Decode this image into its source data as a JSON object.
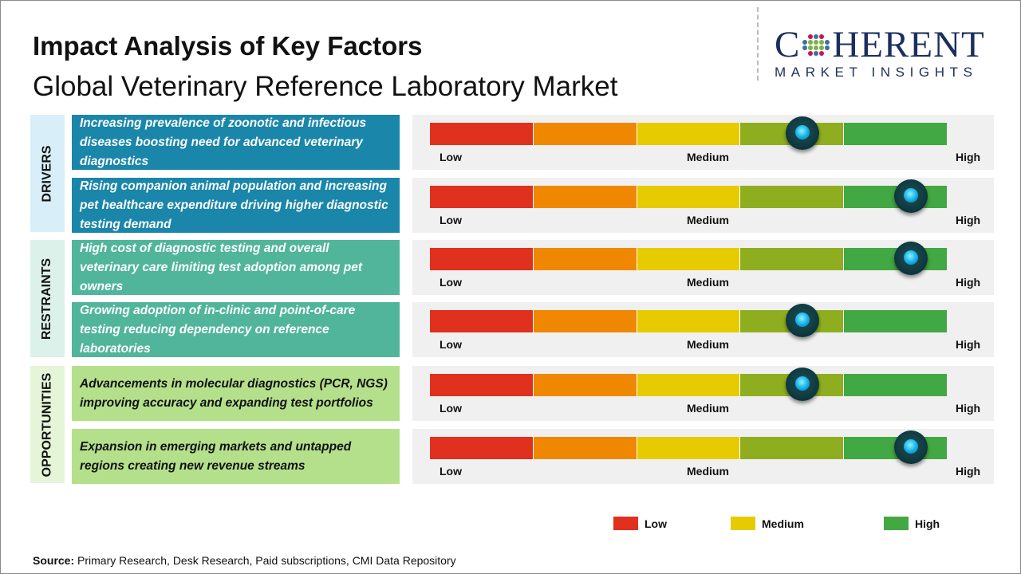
{
  "header": {
    "title": "Impact Analysis of Key Factors",
    "subtitle": "Global Veterinary Reference Laboratory Market"
  },
  "logo": {
    "top": "COHERENT",
    "bottom": "MARKET INSIGHTS"
  },
  "scale_labels": {
    "low": "Low",
    "medium": "Medium",
    "high": "High"
  },
  "scale_colors": [
    "#e0301e",
    "#ef8700",
    "#e6cb00",
    "#8fae1f",
    "#42a843"
  ],
  "categories": [
    {
      "label": "DRIVERS",
      "bg": "#d8eff9",
      "panel": "#1a86aa",
      "text_color": "#ffffff"
    },
    {
      "label": "RESTRAINTS",
      "bg": "#dcf1ea",
      "panel": "#50b59b",
      "text_color": "#ffffff"
    },
    {
      "label": "OPPORTUNITIES",
      "bg": "#e5f5d7",
      "panel": "#b4e08b",
      "text_color": "#111111"
    }
  ],
  "factors": [
    {
      "category": 0,
      "text": "Increasing prevalence of zoonotic and infectious diseases boosting need for advanced veterinary diagnostics",
      "impact": 0.72
    },
    {
      "category": 0,
      "text": "Rising companion animal population and increasing pet healthcare expenditure driving higher diagnostic testing demand",
      "impact": 0.93
    },
    {
      "category": 1,
      "text": "High cost of diagnostic testing and overall veterinary care limiting test adoption among pet owners",
      "impact": 0.93
    },
    {
      "category": 1,
      "text": "Growing adoption of in-clinic and point-of-care testing reducing dependency on reference laboratories",
      "impact": 0.72
    },
    {
      "category": 2,
      "text": "Advancements in molecular diagnostics (PCR, NGS) improving accuracy and expanding test portfolios",
      "impact": 0.72
    },
    {
      "category": 2,
      "text": "Expansion in emerging markets and untapped regions creating new revenue streams",
      "impact": 0.93
    }
  ],
  "legend": [
    {
      "label": "Low",
      "color": "#e0301e"
    },
    {
      "label": "Medium",
      "color": "#e6cb00"
    },
    {
      "label": "High",
      "color": "#42a843"
    }
  ],
  "source": {
    "label": "Source:",
    "text": " Primary Research, Desk Research, Paid subscriptions, CMI Data Repository"
  }
}
